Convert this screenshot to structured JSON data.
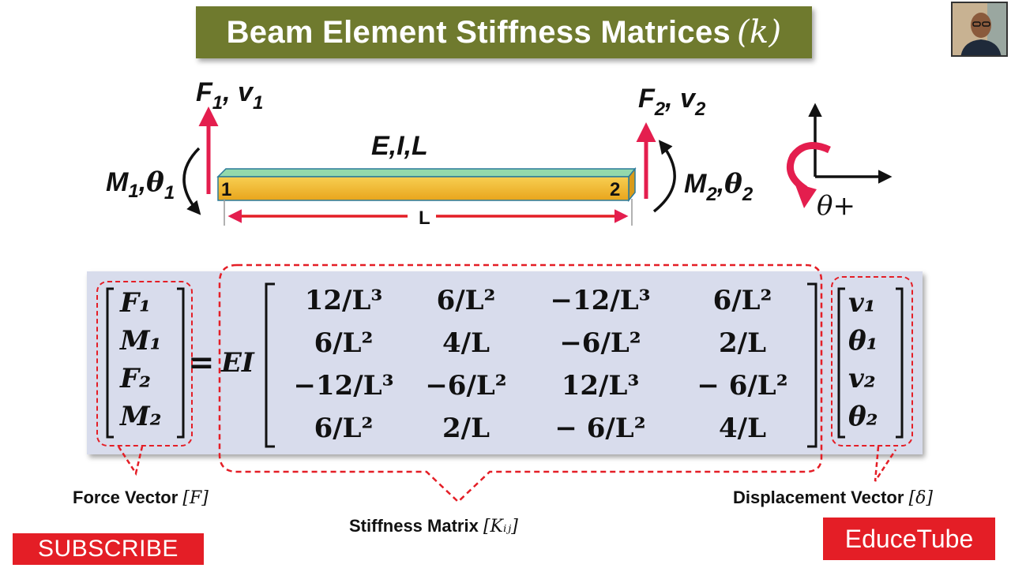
{
  "title": {
    "text": "Beam Element Stiffness Matrices",
    "symbol": "(k)"
  },
  "diagram": {
    "force_left": "F",
    "force_left_sub": "1",
    "disp_left": "v",
    "disp_left_sub": "1",
    "force_right": "F",
    "force_right_sub": "2",
    "disp_right": "v",
    "disp_right_sub": "2",
    "props": "E,I,L",
    "node1": "1",
    "node2": "2",
    "moment_left": "M",
    "moment_left_sub": "1",
    "rot_left": "θ",
    "rot_left_sub": "1",
    "moment_right": "M",
    "moment_right_sub": "2",
    "rot_right": "θ",
    "rot_right_sub": "2",
    "length": "L",
    "sign_convention": "θ+"
  },
  "equation": {
    "force_vector": [
      "F₁",
      "M₁",
      "F₂",
      "M₂"
    ],
    "equals": "=",
    "factor": "EI",
    "matrix": [
      [
        "12/L³",
        "6/L²",
        "−12/L³",
        "6/L²"
      ],
      [
        "6/L²",
        "4/L",
        "−6/L²",
        "2/L"
      ],
      [
        "−12/L³",
        "−6/L²",
        "12/L³",
        "− 6/L²"
      ],
      [
        "6/L²",
        "2/L",
        "− 6/L²",
        "4/L"
      ]
    ],
    "displacement_vector": [
      "v₁",
      "θ₁",
      "v₂",
      "θ₂"
    ]
  },
  "labels": {
    "force_vector": "Force Vector",
    "force_symbol": "[F]",
    "stiffness_matrix": "Stiffness Matrix",
    "stiffness_symbol": "[Kᵢⱼ]",
    "displacement_vector": "Displacement Vector",
    "displacement_symbol": "[δ]"
  },
  "subscribe": "SUBSCRIBE",
  "brand": "EducеTube",
  "colors": {
    "banner": "#6f7a2e",
    "accent": "#e41e26",
    "panel": "#d8dcec",
    "beam_top": "#8fd3a6",
    "beam_front": "#f2b830"
  }
}
